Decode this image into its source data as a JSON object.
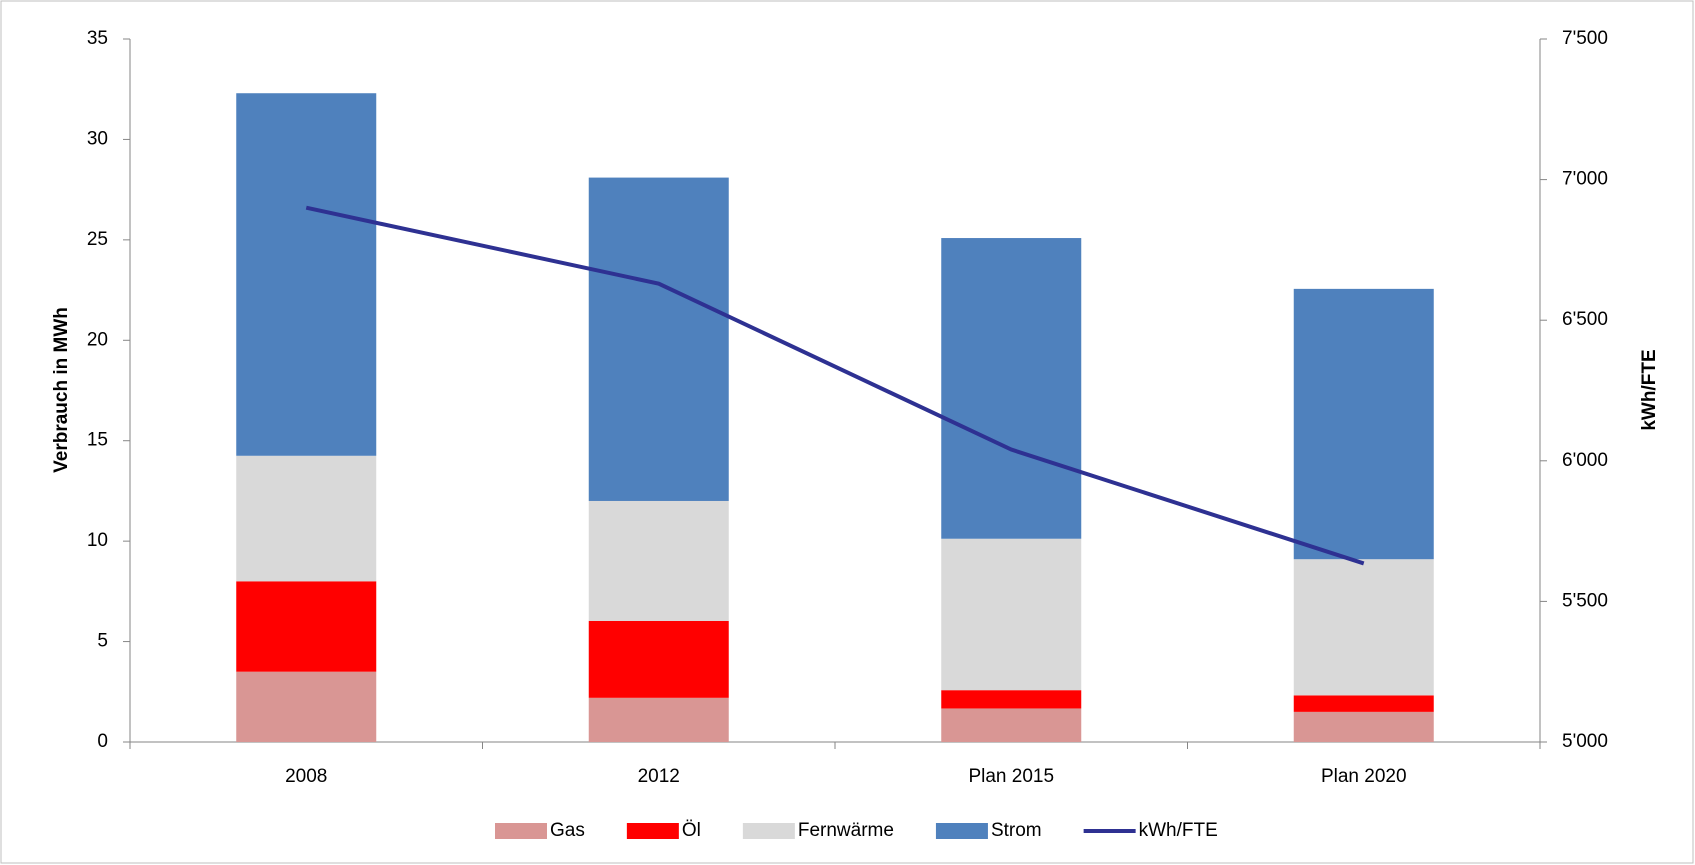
{
  "chart_data": {
    "type": "bar",
    "categories": [
      "2008",
      "2012",
      "Plan 2015",
      "Plan 2020"
    ],
    "series": [
      {
        "name": "Gas",
        "color": "#d99694",
        "values": [
          3.5,
          2.2,
          1.67,
          1.5
        ]
      },
      {
        "name": "Öl",
        "color": "#ff0000",
        "values": [
          4.5,
          3.83,
          0.91,
          0.82
        ]
      },
      {
        "name": "Fernwärme",
        "color": "#d9d9d9",
        "values": [
          6.25,
          5.97,
          7.54,
          6.78
        ]
      },
      {
        "name": "Strom",
        "color": "#4f81bd",
        "values": [
          18.05,
          16.1,
          14.97,
          13.46
        ]
      },
      {
        "name": "kWh/FTE",
        "color": "#2e3192",
        "type": "line",
        "axis": "y2",
        "values": [
          6900,
          6630,
          6040,
          5635
        ]
      }
    ],
    "ylabel": "Verbrauch in  MWh",
    "y2label": "kWh/FTE",
    "ylim": [
      0,
      35
    ],
    "yticks": [
      0,
      5,
      10,
      15,
      20,
      25,
      30,
      35
    ],
    "y2lim": [
      5000,
      7500
    ],
    "y2ticks": [
      {
        "value": 5000,
        "label": "5'000"
      },
      {
        "value": 5500,
        "label": "5'500"
      },
      {
        "value": 6000,
        "label": "6'000"
      },
      {
        "value": 6500,
        "label": "6'500"
      },
      {
        "value": 7000,
        "label": "7'000"
      },
      {
        "value": 7500,
        "label": "7'500"
      }
    ],
    "stacked": true,
    "legend": "bottom"
  }
}
